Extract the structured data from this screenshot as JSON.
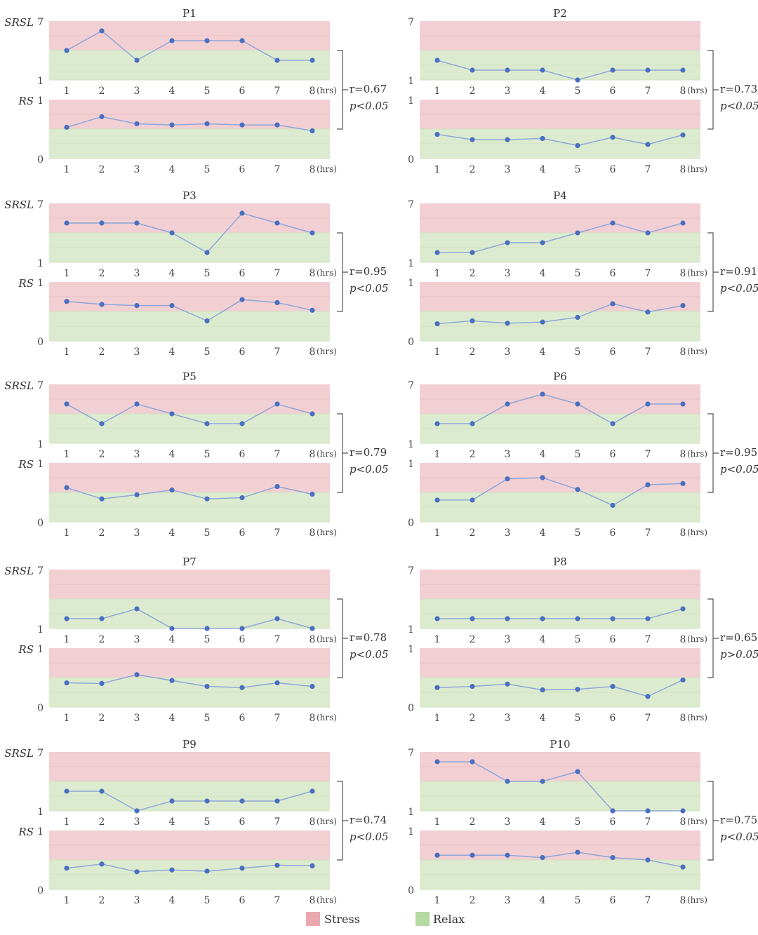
{
  "chart_data": {
    "type": "line",
    "colors": {
      "stress": "#f2cfd3",
      "relax": "#dcebcf",
      "line": "#8ea6d8",
      "marker": "#4a6fbf",
      "grid": "#e6d3d6"
    },
    "srsl_axis": {
      "label": "SRSL",
      "ylim": [
        1,
        7
      ],
      "tick_top": "7",
      "tick_bottom": "1",
      "stress_threshold": 4
    },
    "rs_axis": {
      "label": "RS",
      "ylim": [
        0,
        1
      ],
      "tick_top": "1",
      "tick_bottom": "0",
      "stress_threshold": 0.5
    },
    "x_labels": [
      "1",
      "2",
      "3",
      "4",
      "5",
      "6",
      "7",
      "8"
    ],
    "x_unit": "(hrs)",
    "legend": {
      "stress": "Stress",
      "relax": "Relax"
    },
    "panels": [
      {
        "title": "P1",
        "srsl": [
          4,
          6,
          3,
          5,
          5,
          5,
          3,
          3
        ],
        "rs": [
          0.53,
          0.71,
          0.59,
          0.57,
          0.59,
          0.57,
          0.57,
          0.47
        ],
        "r": "r=0.67",
        "p": "p<0.05"
      },
      {
        "title": "P2",
        "srsl": [
          3,
          2,
          2,
          2,
          1,
          2,
          2,
          2
        ],
        "rs": [
          0.41,
          0.32,
          0.32,
          0.34,
          0.22,
          0.36,
          0.24,
          0.4
        ],
        "r": "r=0.73",
        "p": "p<0.05"
      },
      {
        "title": "P3",
        "srsl": [
          5,
          5,
          5,
          4,
          2,
          6,
          5,
          4
        ],
        "rs": [
          0.67,
          0.62,
          0.6,
          0.6,
          0.34,
          0.7,
          0.65,
          0.52
        ],
        "r": "r=0.95",
        "p": "p<0.05"
      },
      {
        "title": "P4",
        "srsl": [
          2,
          2,
          3,
          3,
          4,
          5,
          4,
          5
        ],
        "rs": [
          0.29,
          0.34,
          0.3,
          0.32,
          0.4,
          0.63,
          0.49,
          0.6
        ],
        "r": "r=0.91",
        "p": "p<0.05"
      },
      {
        "title": "P5",
        "srsl": [
          5,
          3,
          5,
          4,
          3,
          3,
          5,
          4
        ],
        "rs": [
          0.58,
          0.39,
          0.46,
          0.54,
          0.39,
          0.41,
          0.6,
          0.47
        ],
        "r": "r=0.79",
        "p": "p<0.05"
      },
      {
        "title": "P6",
        "srsl": [
          3,
          3,
          5,
          6,
          5,
          3,
          5,
          5
        ],
        "rs": [
          0.37,
          0.37,
          0.73,
          0.75,
          0.55,
          0.28,
          0.63,
          0.65
        ],
        "r": "r=0.95",
        "p": "p<0.05"
      },
      {
        "title": "P7",
        "srsl": [
          2,
          2,
          3,
          1,
          1,
          1,
          2,
          1
        ],
        "rs": [
          0.41,
          0.4,
          0.55,
          0.45,
          0.35,
          0.33,
          0.41,
          0.35
        ],
        "r": "r=0.78",
        "p": "p<0.05"
      },
      {
        "title": "P8",
        "srsl": [
          2,
          2,
          2,
          2,
          2,
          2,
          2,
          3
        ],
        "rs": [
          0.33,
          0.35,
          0.39,
          0.29,
          0.3,
          0.35,
          0.18,
          0.46
        ],
        "r": "r=0.65",
        "p": "p>0.05"
      },
      {
        "title": "P9",
        "srsl": [
          3,
          3,
          1,
          2,
          2,
          2,
          2,
          3
        ],
        "rs": [
          0.36,
          0.43,
          0.3,
          0.33,
          0.31,
          0.36,
          0.41,
          0.4
        ],
        "r": "r=0.74",
        "p": "p<0.05"
      },
      {
        "title": "P10",
        "srsl": [
          6,
          6,
          4,
          4,
          5,
          1,
          1,
          1
        ],
        "rs": [
          0.58,
          0.58,
          0.58,
          0.54,
          0.63,
          0.54,
          0.5,
          0.38
        ],
        "r": "r=0.75",
        "p": "p<0.05"
      }
    ]
  }
}
